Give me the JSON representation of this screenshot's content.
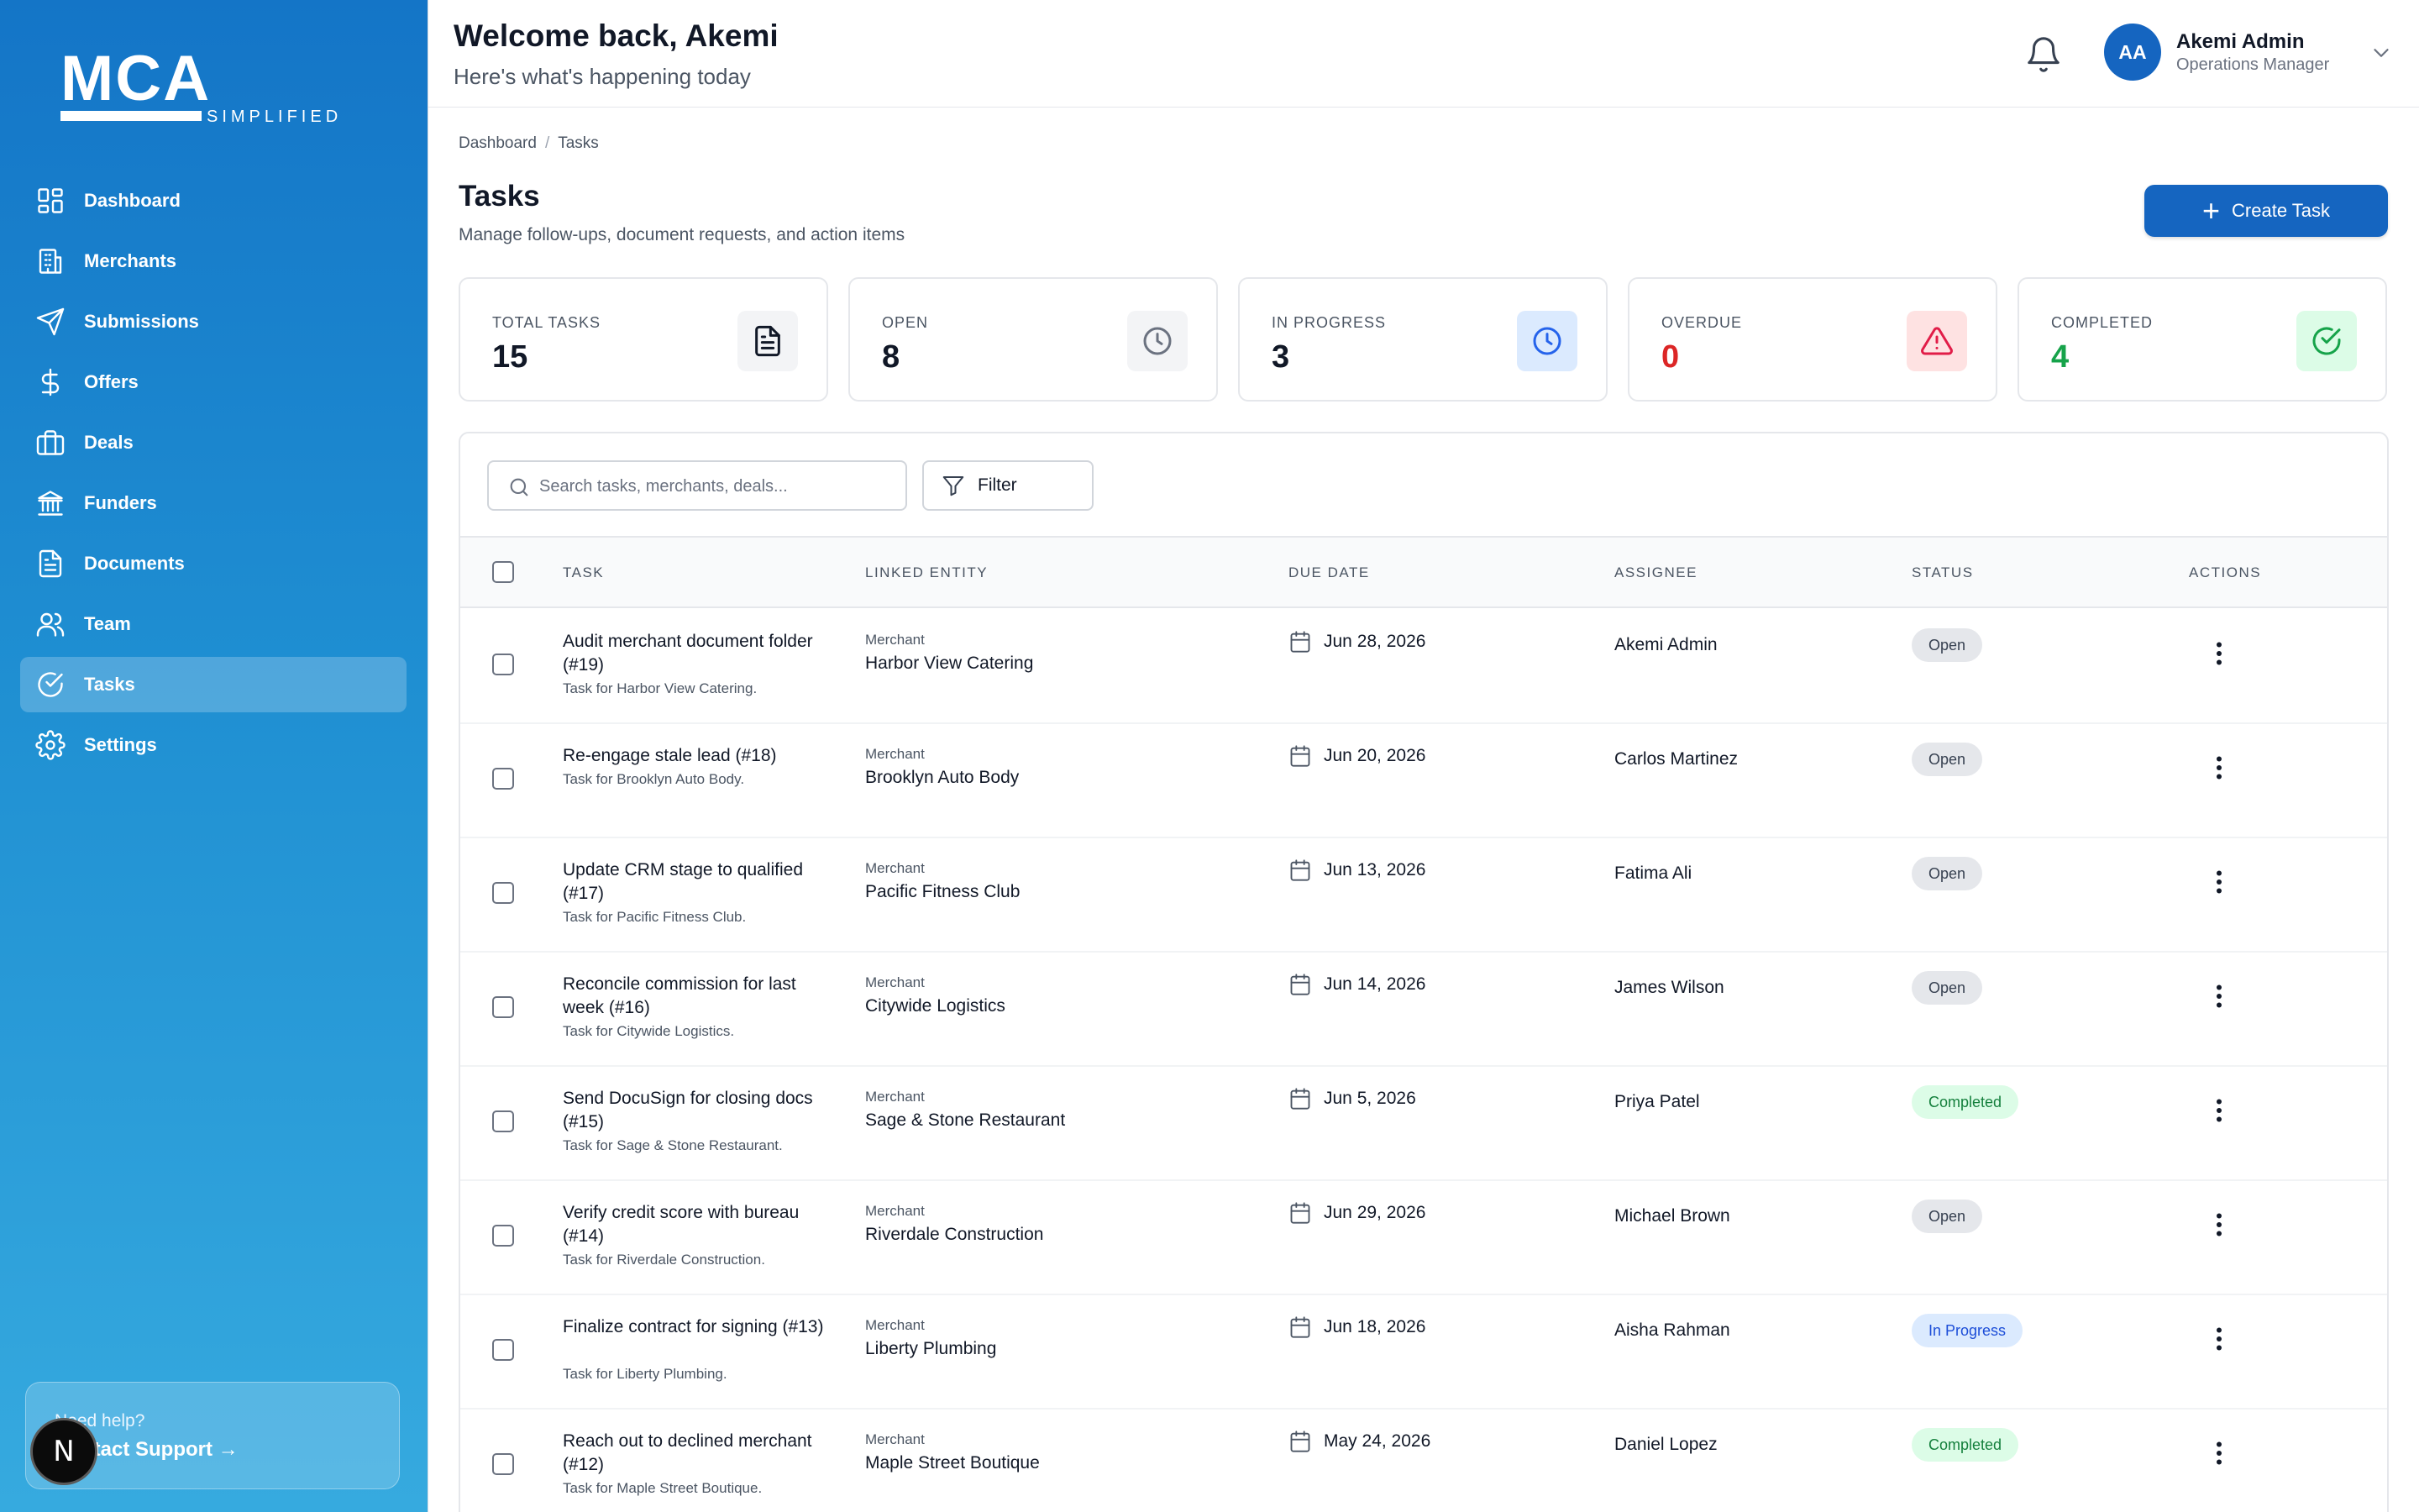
{
  "brand": {
    "name": "MCA",
    "tagline": "SIMPLIFIED"
  },
  "sidebar": {
    "items": [
      {
        "label": "Dashboard",
        "icon": "dashboard-icon"
      },
      {
        "label": "Merchants",
        "icon": "building-icon"
      },
      {
        "label": "Submissions",
        "icon": "send-icon"
      },
      {
        "label": "Offers",
        "icon": "dollar-icon"
      },
      {
        "label": "Deals",
        "icon": "briefcase-icon"
      },
      {
        "label": "Funders",
        "icon": "bank-icon"
      },
      {
        "label": "Documents",
        "icon": "document-icon"
      },
      {
        "label": "Team",
        "icon": "users-icon"
      },
      {
        "label": "Tasks",
        "icon": "check-circle-icon",
        "active": true
      },
      {
        "label": "Settings",
        "icon": "gear-icon"
      }
    ],
    "help": {
      "question": "Need help?",
      "link": "Contact Support →"
    },
    "dev_badge": "N"
  },
  "header": {
    "welcome": "Welcome back, Akemi",
    "subtitle": "Here's what's happening today",
    "user": {
      "initials": "AA",
      "name": "Akemi Admin",
      "role": "Operations Manager"
    }
  },
  "breadcrumb": {
    "items": [
      "Dashboard",
      "Tasks"
    ],
    "separator": "/"
  },
  "page": {
    "title": "Tasks",
    "subtitle": "Manage follow-ups, document requests, and action items",
    "create_label": "Create Task"
  },
  "stats": [
    {
      "label": "TOTAL TASKS",
      "value": "15",
      "icon": "document-icon",
      "value_color": "#111827",
      "icon_bg": "#f3f4f6",
      "icon_color": "#111827"
    },
    {
      "label": "OPEN",
      "value": "8",
      "icon": "clock-icon",
      "value_color": "#111827",
      "icon_bg": "#f3f4f6",
      "icon_color": "#6b7280"
    },
    {
      "label": "IN PROGRESS",
      "value": "3",
      "icon": "clock-icon",
      "value_color": "#111827",
      "icon_bg": "#dbeafe",
      "icon_color": "#2563eb"
    },
    {
      "label": "OVERDUE",
      "value": "0",
      "icon": "alert-triangle-icon",
      "value_color": "#dc2626",
      "icon_bg": "#fee2e2",
      "icon_color": "#e11d48"
    },
    {
      "label": "COMPLETED",
      "value": "4",
      "icon": "check-circle-icon",
      "value_color": "#16a34a",
      "icon_bg": "#dcfce7",
      "icon_color": "#16a34a"
    }
  ],
  "toolbar": {
    "search_placeholder": "Search tasks, merchants, deals...",
    "filter_label": "Filter"
  },
  "table": {
    "columns": [
      "TASK",
      "LINKED ENTITY",
      "DUE DATE",
      "ASSIGNEE",
      "STATUS",
      "ACTIONS"
    ],
    "rows": [
      {
        "title": "Audit merchant document folder (#19)",
        "subtitle": "Task for Harbor View Catering.",
        "entity_type": "Merchant",
        "entity_name": "Harbor View Catering",
        "due": "Jun 28, 2026",
        "assignee": "Akemi Admin",
        "status": "Open",
        "status_kind": "open"
      },
      {
        "title": "Re-engage stale lead (#18)",
        "subtitle": "Task for Brooklyn Auto Body.",
        "entity_type": "Merchant",
        "entity_name": "Brooklyn Auto Body",
        "due": "Jun 20, 2026",
        "assignee": "Carlos Martinez",
        "status": "Open",
        "status_kind": "open"
      },
      {
        "title": "Update CRM stage to qualified (#17)",
        "subtitle": "Task for Pacific Fitness Club.",
        "entity_type": "Merchant",
        "entity_name": "Pacific Fitness Club",
        "due": "Jun 13, 2026",
        "assignee": "Fatima Ali",
        "status": "Open",
        "status_kind": "open"
      },
      {
        "title": "Reconcile commission for last week (#16)",
        "subtitle": "Task for Citywide Logistics.",
        "entity_type": "Merchant",
        "entity_name": "Citywide Logistics",
        "due": "Jun 14, 2026",
        "assignee": "James Wilson",
        "status": "Open",
        "status_kind": "open"
      },
      {
        "title": "Send DocuSign for closing docs (#15)",
        "subtitle": "Task for Sage & Stone Restaurant.",
        "entity_type": "Merchant",
        "entity_name": "Sage & Stone Restaurant",
        "due": "Jun 5, 2026",
        "assignee": "Priya Patel",
        "status": "Completed",
        "status_kind": "completed"
      },
      {
        "title": "Verify credit score with bureau (#14)",
        "subtitle": "Task for Riverdale Construction.",
        "entity_type": "Merchant",
        "entity_name": "Riverdale Construction",
        "due": "Jun 29, 2026",
        "assignee": "Michael Brown",
        "status": "Open",
        "status_kind": "open"
      },
      {
        "title": "Finalize contract for signing (#13)",
        "subtitle": "Task for Liberty Plumbing.",
        "entity_type": "Merchant",
        "entity_name": "Liberty Plumbing",
        "due": "Jun 18, 2026",
        "assignee": "Aisha Rahman",
        "status": "In Progress",
        "status_kind": "progress"
      },
      {
        "title": "Reach out to declined merchant (#12)",
        "subtitle": "Task for Maple Street Boutique.",
        "entity_type": "Merchant",
        "entity_name": "Maple Street Boutique",
        "due": "May 24, 2026",
        "assignee": "Daniel Lopez",
        "status": "Completed",
        "status_kind": "completed"
      }
    ]
  }
}
